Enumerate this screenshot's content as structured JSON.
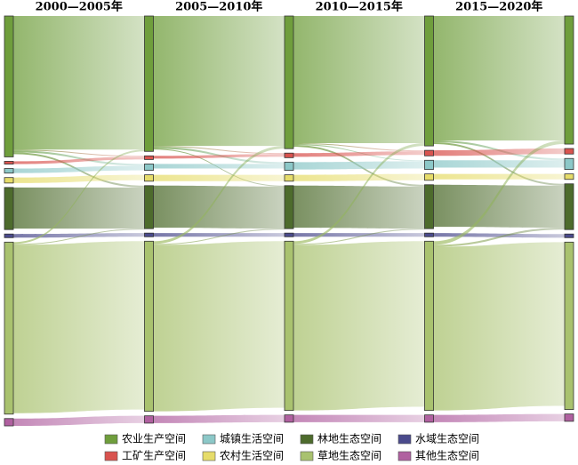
{
  "chart_data": {
    "type": "sankey",
    "periods": [
      "2000—2005年",
      "2005—2010年",
      "2010—2015年",
      "2015—2020年"
    ],
    "series": [
      {
        "name": "农业生产空间",
        "color": "#6f9e3c",
        "values": [
          154,
          148,
          145,
          142,
          140
        ]
      },
      {
        "name": "工矿生产空间",
        "color": "#d9534f",
        "values": [
          3,
          4,
          5,
          6,
          6
        ]
      },
      {
        "name": "城镇生活空间",
        "color": "#8cc8c8",
        "values": [
          5,
          7,
          9,
          10,
          12
        ]
      },
      {
        "name": "农村生活空间",
        "color": "#e6dc6a",
        "values": [
          6,
          7,
          7,
          7,
          6
        ]
      },
      {
        "name": "林地生态空间",
        "color": "#4d6b2c",
        "values": [
          46,
          47,
          47,
          48,
          50
        ]
      },
      {
        "name": "水域生态空间",
        "color": "#4a4a8c",
        "values": [
          4,
          4,
          4,
          4,
          4
        ]
      },
      {
        "name": "草地生态空间",
        "color": "#a9c26f",
        "values": [
          188,
          186,
          185,
          185,
          183
        ]
      },
      {
        "name": "其他生态空间",
        "color": "#b060a0",
        "values": [
          8,
          8,
          8,
          8,
          8
        ]
      }
    ],
    "links": [
      {
        "source": 0,
        "target": 0,
        "values": [
          146,
          142,
          139,
          136
        ]
      },
      {
        "source": 0,
        "target": 1,
        "values": [
          1,
          1,
          1,
          0
        ]
      },
      {
        "source": 0,
        "target": 2,
        "values": [
          2,
          2,
          1,
          2
        ]
      },
      {
        "source": 0,
        "target": 4,
        "values": [
          2,
          1,
          2,
          2
        ]
      },
      {
        "source": 1,
        "target": 1,
        "values": [
          3,
          3,
          4,
          6
        ]
      },
      {
        "source": 2,
        "target": 2,
        "values": [
          5,
          5,
          8,
          8
        ]
      },
      {
        "source": 3,
        "target": 3,
        "values": [
          6,
          7,
          7,
          6
        ]
      },
      {
        "source": 4,
        "target": 4,
        "values": [
          45,
          46,
          46,
          46
        ]
      },
      {
        "source": 5,
        "target": 5,
        "values": [
          4,
          4,
          4,
          4
        ]
      },
      {
        "source": 6,
        "target": 0,
        "values": [
          2,
          3,
          3,
          4
        ]
      },
      {
        "source": 6,
        "target": 4,
        "values": [
          1,
          1,
          1,
          2
        ]
      },
      {
        "source": 6,
        "target": 6,
        "values": [
          184,
          182,
          181,
          179
        ]
      },
      {
        "source": 7,
        "target": 7,
        "values": [
          8,
          8,
          8,
          8
        ]
      }
    ]
  }
}
